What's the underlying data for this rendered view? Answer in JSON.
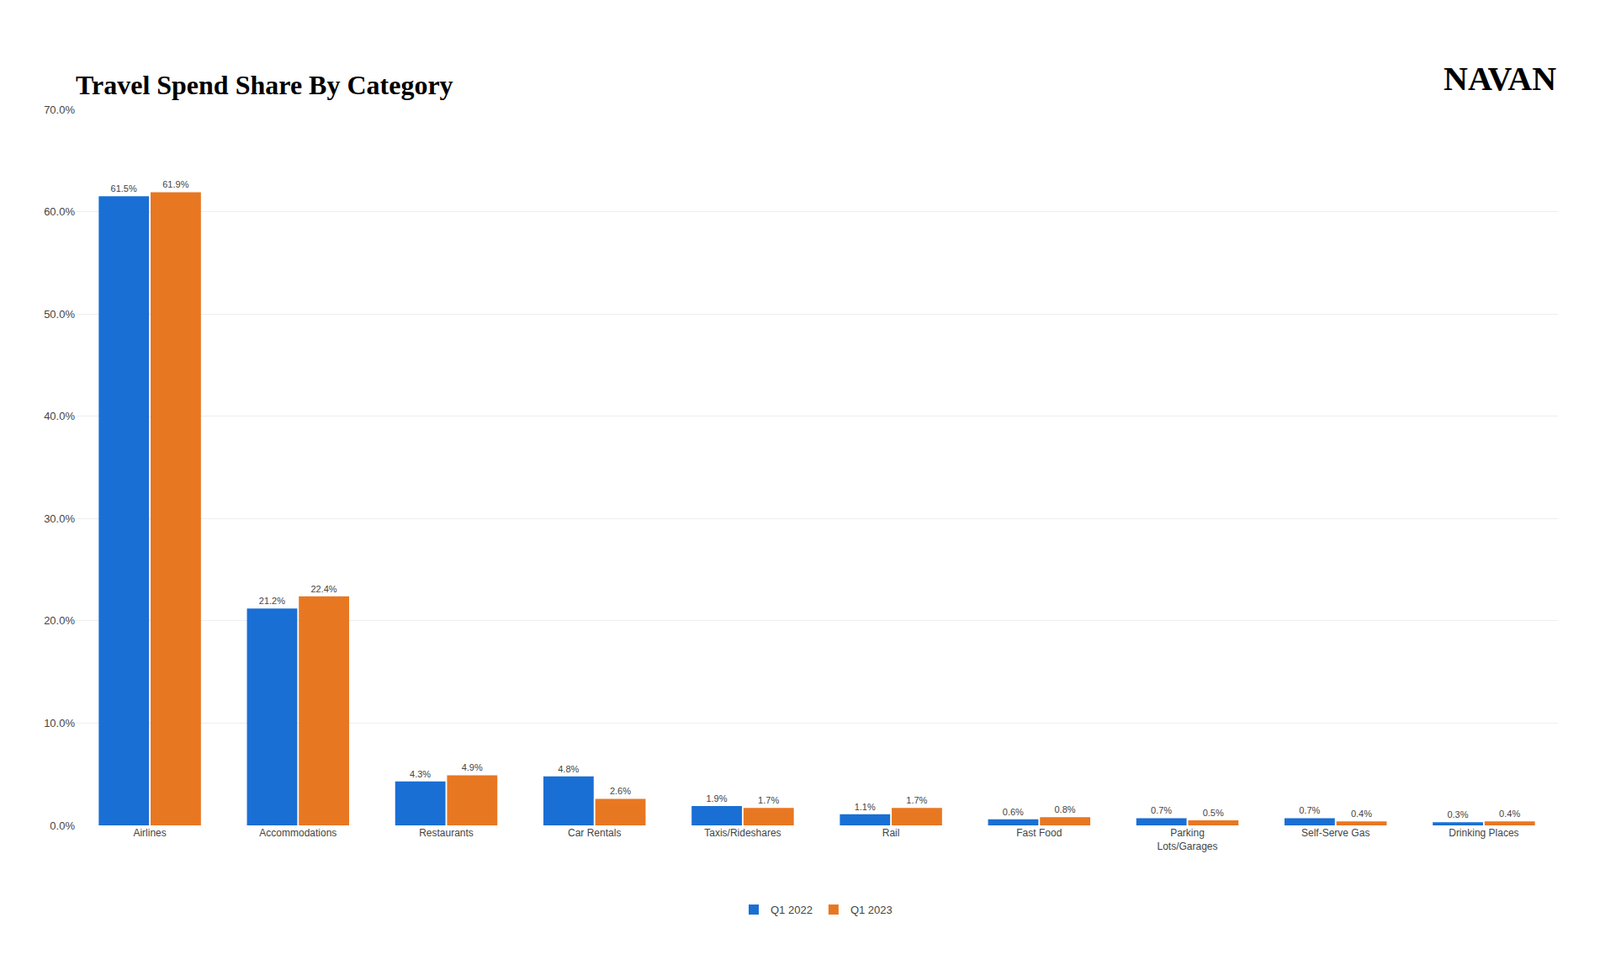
{
  "chart_data": {
    "type": "bar",
    "title": "Travel Spend Share By Category",
    "categories": [
      "Airlines",
      "Accommodations",
      "Restaurants",
      "Car Rentals",
      "Taxis/Rideshares",
      "Rail",
      "Fast Food",
      "Parking\nLots/Garages",
      "Self-Serve Gas",
      "Drinking Places"
    ],
    "series": [
      {
        "name": "Q1 2022",
        "color": "#1a6fd4",
        "values": [
          61.5,
          21.2,
          4.3,
          4.8,
          1.9,
          1.1,
          0.6,
          0.7,
          0.7,
          0.3
        ],
        "value_labels": [
          "61.5%",
          "21.2%",
          "4.3%",
          "4.8%",
          "1.9%",
          "1.1%",
          "0.6%",
          "0.7%",
          "0.7%",
          "0.3%"
        ]
      },
      {
        "name": "Q1 2023",
        "color": "#E87722",
        "values": [
          61.9,
          22.4,
          4.9,
          2.6,
          1.7,
          1.7,
          0.8,
          0.5,
          0.4,
          0.4
        ],
        "value_labels": [
          "61.9%",
          "22.4%",
          "4.9%",
          "2.6%",
          "1.7%",
          "1.7%",
          "0.8%",
          "0.5%",
          "0.4%",
          "0.4%"
        ]
      }
    ],
    "ylim": [
      0,
      70.0
    ],
    "yticks": [
      {
        "value": 0.0,
        "label": "0.0%"
      },
      {
        "value": 10.0,
        "label": "10.0%"
      },
      {
        "value": 20.0,
        "label": "20.0%"
      },
      {
        "value": 30.0,
        "label": "30.0%"
      },
      {
        "value": 40.0,
        "label": "40.0%"
      },
      {
        "value": 50.0,
        "label": "50.0%"
      },
      {
        "value": 60.0,
        "label": "60.0%"
      },
      {
        "value": 70.0,
        "label": "70.0%"
      }
    ],
    "grid": true,
    "legend": "bottom",
    "data_labels": true,
    "annotations": [
      "NAVAN"
    ]
  }
}
